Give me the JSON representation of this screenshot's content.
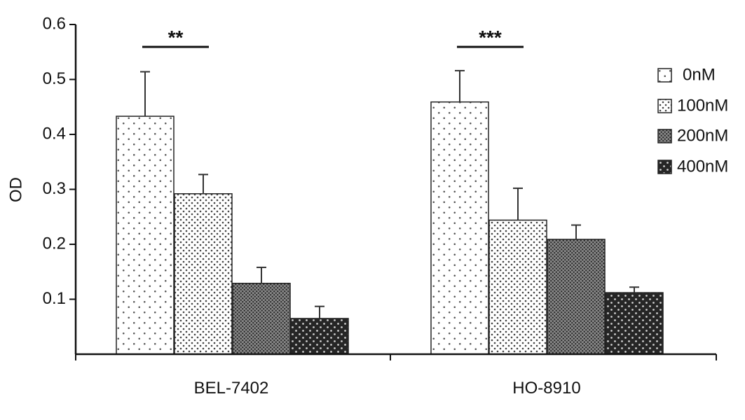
{
  "chart_data": {
    "type": "bar",
    "title": "",
    "xlabel": "",
    "ylabel": "OD",
    "ylim": [
      0,
      0.6
    ],
    "yticks": [
      "0.1",
      "0.2",
      "0.3",
      "0.4",
      "0.5",
      "0.6"
    ],
    "ytick_values": [
      0.1,
      0.2,
      0.3,
      0.4,
      0.5,
      0.6
    ],
    "categories": [
      "BEL-7402",
      "HO-8910"
    ],
    "series": [
      {
        "name": "0nM",
        "values": [
          0.433,
          0.459
        ],
        "errors": [
          0.081,
          0.057
        ],
        "fill": "#ffffff",
        "dot": "#555555",
        "pattern": "sparse-dots"
      },
      {
        "name": "100nM",
        "values": [
          0.292,
          0.244
        ],
        "errors": [
          0.035,
          0.058
        ],
        "fill": "#ffffff",
        "dot": "#444444",
        "pattern": "fine-dots"
      },
      {
        "name": "200nM",
        "values": [
          0.129,
          0.209
        ],
        "errors": [
          0.029,
          0.026
        ],
        "fill": "#8a8a8a",
        "dot": "#2a2a2a",
        "pattern": "dense-dots"
      },
      {
        "name": "400nM",
        "values": [
          0.065,
          0.112
        ],
        "errors": [
          0.022,
          0.01
        ],
        "fill": "#262626",
        "dot": "#cfcfcf",
        "pattern": "light-dots-on-dark"
      }
    ],
    "significance": [
      {
        "category": "BEL-7402",
        "label": "**"
      },
      {
        "category": "HO-8910",
        "label": "***"
      }
    ],
    "legend_position": "right",
    "grid": false
  }
}
